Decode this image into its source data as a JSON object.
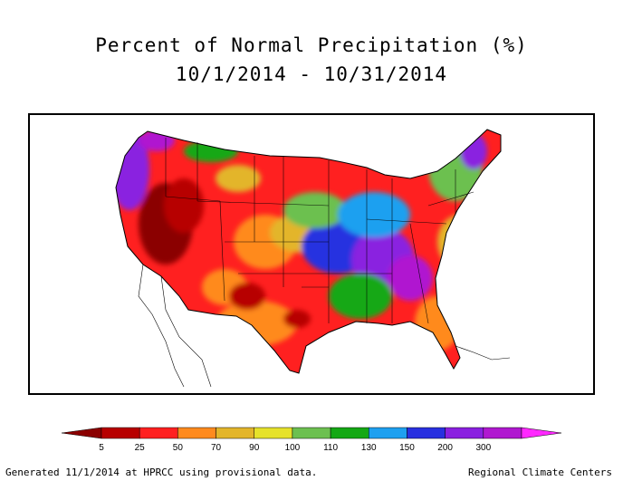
{
  "title": {
    "line1": "Percent of Normal Precipitation (%)",
    "line2": "10/1/2014 - 10/31/2014"
  },
  "legend": {
    "classes": [
      {
        "color": "#8b0000"
      },
      {
        "color": "#b70000"
      },
      {
        "color": "#ff2020"
      },
      {
        "color": "#ff8a1e"
      },
      {
        "color": "#e3b52a"
      },
      {
        "color": "#e6e22a"
      },
      {
        "color": "#6cc050"
      },
      {
        "color": "#14a814"
      },
      {
        "color": "#1ea0f0"
      },
      {
        "color": "#2830e0"
      },
      {
        "color": "#8a20e0"
      },
      {
        "color": "#b018d0"
      },
      {
        "color": "#ff28ff"
      }
    ],
    "ticks": [
      "5",
      "25",
      "50",
      "70",
      "90",
      "100",
      "110",
      "130",
      "150",
      "200",
      "300"
    ]
  },
  "footer": {
    "left": "Generated 11/1/2014 at HPRCC using provisional data.",
    "right": "Regional Climate Centers"
  }
}
